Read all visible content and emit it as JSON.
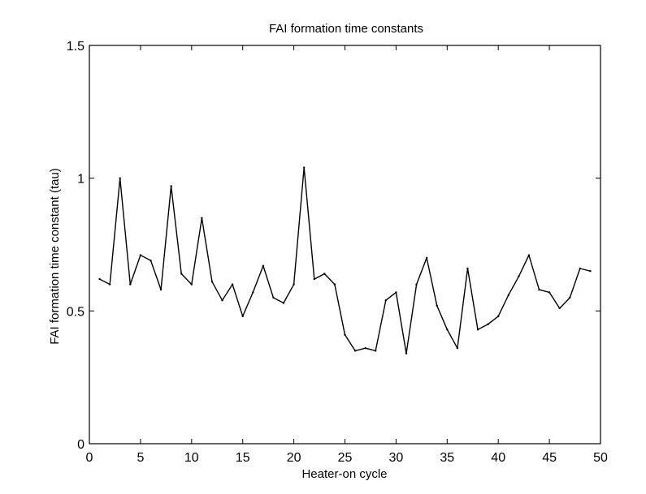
{
  "chart_data": {
    "type": "line",
    "title": "FAI formation time constants",
    "xlabel": "Heater-on cycle",
    "ylabel": "FAI formation time constant (tau)",
    "xlim": [
      0,
      50
    ],
    "ylim": [
      0,
      1.5
    ],
    "xticks": [
      "0",
      "5",
      "10",
      "15",
      "20",
      "25",
      "30",
      "35",
      "40",
      "45",
      "50"
    ],
    "yticks": [
      "0",
      "0.5",
      "1",
      "1.5"
    ],
    "grid": false,
    "series": [
      {
        "color": "#000000",
        "x": [
          1,
          2,
          3,
          4,
          5,
          6,
          7,
          8,
          9,
          10,
          11,
          12,
          13,
          14,
          15,
          16,
          17,
          18,
          19,
          20,
          21,
          22,
          23,
          24,
          25,
          26,
          27,
          28,
          29,
          30,
          31,
          32,
          33,
          34,
          35,
          36,
          37,
          38,
          39,
          40,
          41,
          42,
          43,
          44,
          45,
          46,
          47,
          48,
          49
        ],
        "values": [
          0.62,
          0.6,
          1.0,
          0.6,
          0.71,
          0.69,
          0.58,
          0.97,
          0.64,
          0.6,
          0.85,
          0.61,
          0.54,
          0.6,
          0.48,
          0.57,
          0.67,
          0.55,
          0.53,
          0.6,
          1.04,
          0.62,
          0.64,
          0.6,
          0.41,
          0.35,
          0.36,
          0.35,
          0.54,
          0.57,
          0.34,
          0.6,
          0.7,
          0.52,
          0.43,
          0.36,
          0.66,
          0.43,
          0.45,
          0.48,
          0.56,
          0.63,
          0.71,
          0.58,
          0.57,
          0.51,
          0.55,
          0.66,
          0.65
        ]
      }
    ]
  }
}
